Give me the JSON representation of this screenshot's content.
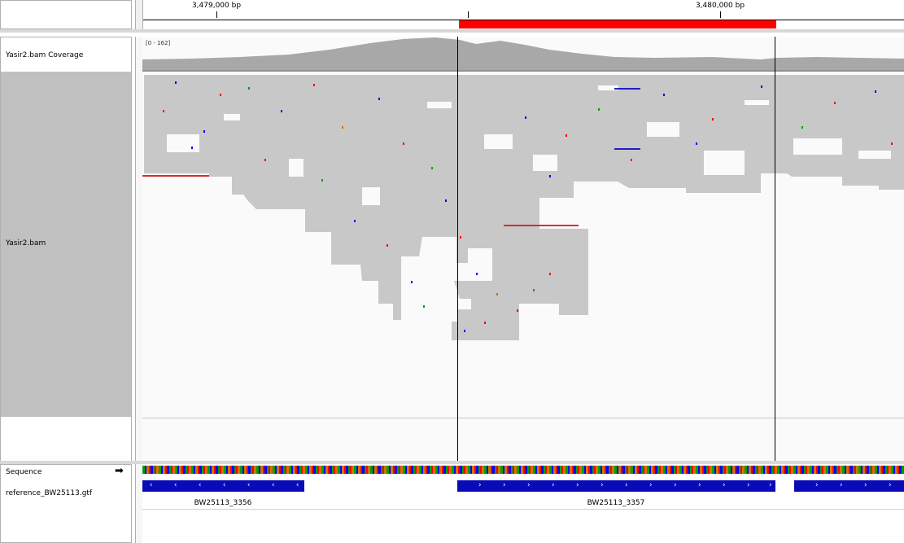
{
  "ruler": {
    "ticks": [
      {
        "label": "3,479,000 bp",
        "x": 265
      },
      {
        "label": "3,480,000 bp",
        "x": 884
      }
    ]
  },
  "tracks": {
    "coverage": {
      "label": "Yasir2.bam Coverage",
      "range": "[0 - 162]"
    },
    "alignment": {
      "label": "Yasir2.bam"
    },
    "sequence": {
      "label": "Sequence",
      "arrow": "➡"
    },
    "annotation": {
      "label": "reference_BW25113.gtf"
    }
  },
  "features": [
    {
      "name": "BW25113_3356",
      "strand": "-",
      "label_x": 274
    },
    {
      "name": "BW25113_3357",
      "strand": "+",
      "label_x": 757
    }
  ],
  "colors": {
    "region_of_interest": "#ff0000",
    "read_gray": "#c8c8c8",
    "coverage_gray": "#a8a8a8",
    "name_panel_gray": "#c0c0c0",
    "gene_blue": "#0a0ab8",
    "mismatch_A": "#00a000",
    "mismatch_C": "#0000ff",
    "mismatch_G": "#d17105",
    "mismatch_T": "#ff0000"
  },
  "icons": {
    "sequence_direction": "right-arrow-icon",
    "strand_minus": "chevron-left-icon",
    "strand_plus": "chevron-right-icon"
  }
}
